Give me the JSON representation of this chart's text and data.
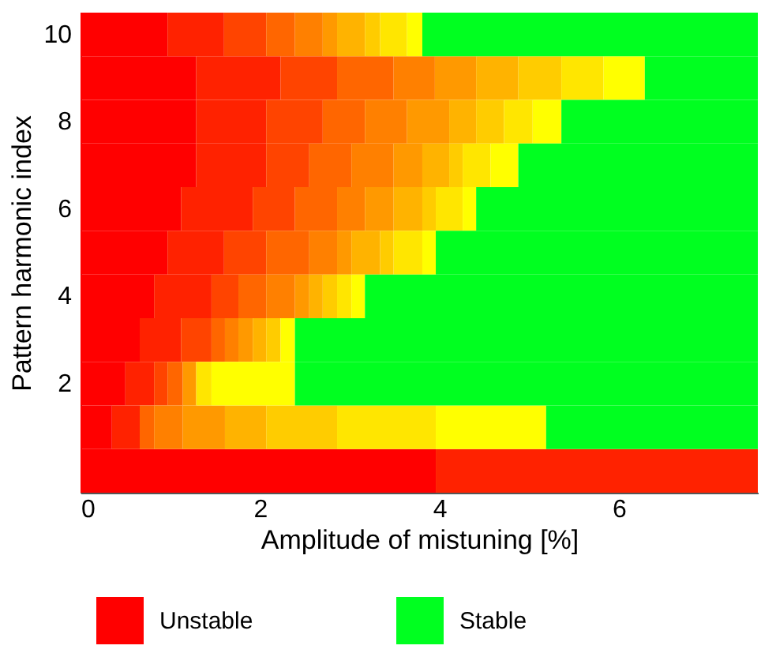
{
  "chart_data": {
    "type": "bar",
    "orientation": "horizontal",
    "stacked": true,
    "xlabel": "Amplitude of mistuning [%]",
    "ylabel": "Pattern harmonic index",
    "legend": "bottom",
    "categories": [
      "10",
      null,
      "8",
      null,
      "6",
      null,
      "4",
      null,
      "2",
      null,
      null
    ],
    "xlim": [
      0,
      7.55
    ],
    "xticks": [
      0,
      2,
      4,
      6
    ],
    "series": [
      {
        "name": "Unstable",
        "color": "#ff0000",
        "values": [
          0.97,
          1.29,
          1.29,
          1.29,
          1.12,
          0.97,
          0.82,
          0.66,
          0.5,
          0.35,
          3.96
        ]
      },
      {
        "color": "#ff2200",
        "values": [
          0.63,
          0.94,
          0.78,
          0.78,
          0.8,
          0.63,
          0.64,
          0.46,
          0.32,
          0.31,
          3.59
        ]
      },
      {
        "color": "#ff4400",
        "values": [
          0.47,
          0.63,
          0.63,
          0.48,
          0.47,
          0.47,
          0.3,
          0.34,
          0.15,
          null,
          null
        ]
      },
      {
        "color": "#ff6600",
        "values": [
          0.32,
          0.63,
          0.47,
          0.47,
          0.47,
          0.48,
          0.31,
          0.15,
          0.17,
          0.16,
          null
        ]
      },
      {
        "color": "#ff8000",
        "values": [
          0.31,
          0.46,
          0.47,
          0.47,
          0.31,
          0.31,
          0.32,
          0.15,
          null,
          0.32,
          null
        ]
      },
      {
        "color": "#ff9900",
        "values": [
          0.16,
          0.46,
          0.47,
          0.32,
          0.32,
          0.16,
          0.16,
          0.16,
          0.15,
          0.47,
          null
        ]
      },
      {
        "color": "#ffb300",
        "values": [
          0.31,
          0.47,
          0.3,
          0.3,
          0.32,
          0.32,
          0.15,
          0.15,
          null,
          0.46,
          null
        ]
      },
      {
        "color": "#ffcc00",
        "values": [
          0.17,
          0.48,
          0.31,
          0.15,
          0.15,
          0.15,
          0.16,
          0.16,
          null,
          0.79,
          null
        ]
      },
      {
        "color": "#ffe600",
        "values": [
          0.3,
          0.47,
          0.32,
          0.31,
          0.3,
          0.32,
          0.16,
          null,
          0.17,
          1.1,
          null
        ]
      },
      {
        "color": "#ffff00",
        "values": [
          0.17,
          0.46,
          0.32,
          0.31,
          0.15,
          0.15,
          0.15,
          0.16,
          0.93,
          1.23,
          null
        ]
      },
      {
        "name": "Stable",
        "color": "#00ff20",
        "values": [
          3.74,
          1.26,
          2.19,
          2.67,
          3.14,
          3.59,
          4.38,
          5.16,
          5.16,
          2.36,
          null
        ]
      }
    ]
  }
}
